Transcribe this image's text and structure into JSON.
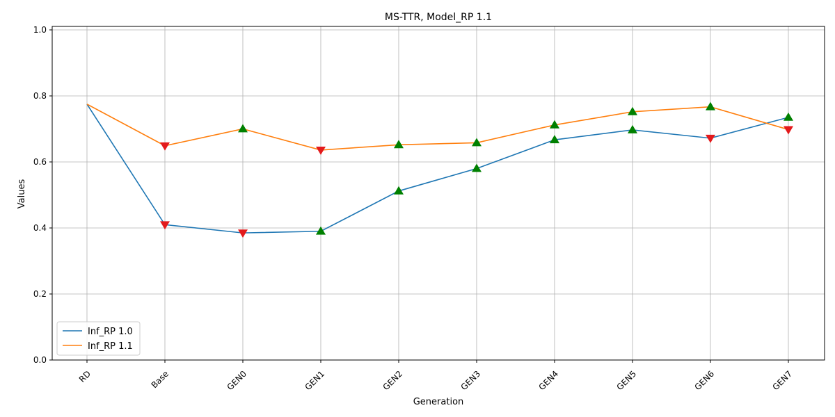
{
  "chart_data": {
    "type": "line",
    "title": "MS-TTR, Model_RP 1.1",
    "xlabel": "Generation",
    "ylabel": "Values",
    "categories": [
      "RD",
      "Base",
      "GEN0",
      "GEN1",
      "GEN2",
      "GEN3",
      "GEN4",
      "GEN5",
      "GEN6",
      "GEN7"
    ],
    "ylim": [
      0,
      1.0
    ],
    "yticks": [
      0.0,
      0.2,
      0.4,
      0.6,
      0.8,
      1.0
    ],
    "ytick_labels": [
      "0.0",
      "0.2",
      "0.4",
      "0.6",
      "0.8",
      "1.0"
    ],
    "grid": true,
    "legend_position": "lower-left",
    "series": [
      {
        "name": "Inf_RP 1.0",
        "color": "#1f77b4",
        "values": [
          0.775,
          0.41,
          0.385,
          0.39,
          0.512,
          0.58,
          0.667,
          0.697,
          0.672,
          0.735
        ],
        "markers": [
          "none",
          "down",
          "down",
          "up",
          "up",
          "up",
          "up",
          "up",
          "down",
          "up"
        ]
      },
      {
        "name": "Inf_RP 1.1",
        "color": "#ff7f0e",
        "values": [
          0.775,
          0.649,
          0.7,
          0.636,
          0.652,
          0.658,
          0.712,
          0.752,
          0.767,
          0.698
        ],
        "markers": [
          "none",
          "down",
          "up",
          "down",
          "up",
          "up",
          "up",
          "up",
          "up",
          "down"
        ]
      }
    ],
    "marker_colors": {
      "up": "#008000",
      "down": "#e31a1c"
    }
  }
}
